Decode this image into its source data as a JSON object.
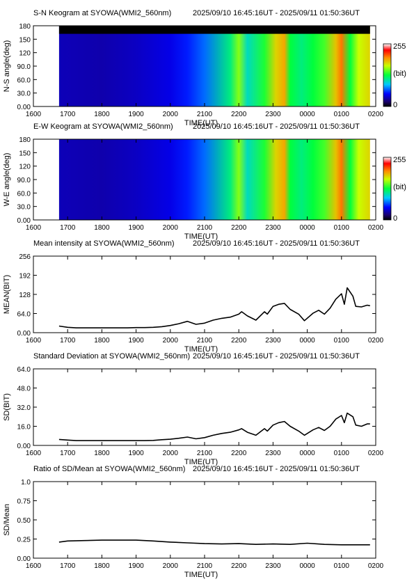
{
  "figure": {
    "time_range_text": "2025/09/10 16:45:16UT - 2025/09/11 01:50:36UT",
    "x_tick_labels": [
      "1600",
      "1700",
      "1800",
      "1900",
      "2000",
      "2100",
      "2200",
      "2300",
      "0000",
      "0100",
      "0200"
    ],
    "x_axis_label": "TIME(UT)",
    "colorbar_labels": {
      "max": "255",
      "unit": "(bit)",
      "min": "0"
    }
  },
  "chart_data": [
    {
      "type": "heatmap",
      "title": "S-N Keogram at SYOWA(WMI2_560nm)",
      "ylabel": "N-S angle(deg)",
      "xlabel": "TIME(UT)",
      "xlim": [
        "16:00",
        "02:00"
      ],
      "ylim": [
        0,
        180
      ],
      "y_ticks": [
        "0.00",
        "30.0",
        "60.0",
        "90.0",
        "120",
        "150",
        "180"
      ],
      "data_start": "16:45",
      "data_end": "01:50",
      "missing_band_deg": [
        162,
        180
      ],
      "colorbar": [
        0,
        255
      ],
      "colormap": "rainbow",
      "intensity_profile": [
        {
          "time": "16:45",
          "level": 0.14
        },
        {
          "time": "18:00",
          "level": 0.13
        },
        {
          "time": "19:00",
          "level": 0.15
        },
        {
          "time": "20:00",
          "level": 0.18
        },
        {
          "time": "20:30",
          "level": 0.22
        },
        {
          "time": "21:00",
          "level": 0.28
        },
        {
          "time": "21:45",
          "level": 0.45
        },
        {
          "time": "22:00",
          "level": 0.6
        },
        {
          "time": "22:15",
          "level": 0.4
        },
        {
          "time": "22:45",
          "level": 0.52
        },
        {
          "time": "23:05",
          "level": 0.7
        },
        {
          "time": "23:20",
          "level": 0.75
        },
        {
          "time": "23:30",
          "level": 0.5
        },
        {
          "time": "23:50",
          "level": 0.45
        },
        {
          "time": "00:10",
          "level": 0.5
        },
        {
          "time": "00:30",
          "level": 0.55
        },
        {
          "time": "00:50",
          "level": 0.72
        },
        {
          "time": "01:00",
          "level": 0.8
        },
        {
          "time": "01:15",
          "level": 0.5
        },
        {
          "time": "01:30",
          "level": 0.65
        },
        {
          "time": "01:50",
          "level": 0.7
        }
      ]
    },
    {
      "type": "heatmap",
      "title": "E-W Keogram at SYOWA(WMI2_560nm)",
      "ylabel": "W-E angle(deg)",
      "xlabel": "TIME(UT)",
      "xlim": [
        "16:00",
        "02:00"
      ],
      "ylim": [
        0,
        180
      ],
      "y_ticks": [
        "0.00",
        "30.0",
        "60.0",
        "90.0",
        "120",
        "150",
        "180"
      ],
      "data_start": "16:45",
      "data_end": "01:50",
      "missing_band_deg": null,
      "colorbar": [
        0,
        255
      ],
      "colormap": "rainbow",
      "intensity_profile": [
        {
          "time": "16:45",
          "level": 0.14
        },
        {
          "time": "18:00",
          "level": 0.13
        },
        {
          "time": "19:00",
          "level": 0.15
        },
        {
          "time": "20:00",
          "level": 0.18
        },
        {
          "time": "20:30",
          "level": 0.22
        },
        {
          "time": "21:00",
          "level": 0.28
        },
        {
          "time": "21:45",
          "level": 0.45
        },
        {
          "time": "22:00",
          "level": 0.6
        },
        {
          "time": "22:15",
          "level": 0.4
        },
        {
          "time": "22:45",
          "level": 0.52
        },
        {
          "time": "23:05",
          "level": 0.7
        },
        {
          "time": "23:20",
          "level": 0.75
        },
        {
          "time": "23:30",
          "level": 0.5
        },
        {
          "time": "23:50",
          "level": 0.45
        },
        {
          "time": "00:10",
          "level": 0.5
        },
        {
          "time": "00:30",
          "level": 0.55
        },
        {
          "time": "00:50",
          "level": 0.72
        },
        {
          "time": "01:00",
          "level": 0.8
        },
        {
          "time": "01:15",
          "level": 0.5
        },
        {
          "time": "01:30",
          "level": 0.65
        },
        {
          "time": "01:50",
          "level": 0.7
        }
      ]
    },
    {
      "type": "line",
      "title": "Mean intensity at SYOWA(WMI2_560nm)",
      "ylabel": "MEAN(BIT)",
      "xlabel": "TIME(UT)",
      "xlim": [
        "16:00",
        "02:00"
      ],
      "ylim": [
        0,
        256
      ],
      "y_ticks": [
        "0.00",
        "64.0",
        "128",
        "192",
        "256"
      ],
      "x": [
        "16:45",
        "17:00",
        "17:15",
        "17:30",
        "17:45",
        "18:00",
        "18:15",
        "18:30",
        "18:45",
        "19:00",
        "19:15",
        "19:30",
        "19:45",
        "20:00",
        "20:15",
        "20:30",
        "20:45",
        "21:00",
        "21:15",
        "21:30",
        "21:45",
        "22:00",
        "22:05",
        "22:15",
        "22:30",
        "22:45",
        "22:50",
        "23:00",
        "23:10",
        "23:20",
        "23:30",
        "23:45",
        "23:55",
        "00:10",
        "00:20",
        "00:30",
        "00:40",
        "00:50",
        "01:00",
        "01:05",
        "01:10",
        "01:20",
        "01:25",
        "01:35",
        "01:45",
        "01:50"
      ],
      "series": [
        {
          "values": [
            22,
            18,
            16,
            16,
            16,
            16,
            16,
            16,
            16,
            17,
            17,
            18,
            20,
            24,
            30,
            38,
            28,
            32,
            42,
            48,
            52,
            62,
            70,
            56,
            42,
            70,
            62,
            88,
            95,
            98,
            78,
            62,
            40,
            65,
            75,
            62,
            82,
            112,
            130,
            95,
            150,
            122,
            88,
            86,
            92,
            90
          ]
        }
      ]
    },
    {
      "type": "line",
      "title": "Standard Deviation at SYOWA(WMI2_560nm)",
      "ylabel": "SD(BIT)",
      "xlabel": "TIME(UT)",
      "xlim": [
        "16:00",
        "02:00"
      ],
      "ylim": [
        0,
        64
      ],
      "y_ticks": [
        "0.00",
        "16.0",
        "32.0",
        "48.0",
        "64.0"
      ],
      "x": [
        "16:45",
        "17:00",
        "17:15",
        "17:30",
        "17:45",
        "18:00",
        "18:15",
        "18:30",
        "18:45",
        "19:00",
        "19:15",
        "19:30",
        "19:45",
        "20:00",
        "20:15",
        "20:30",
        "20:45",
        "21:00",
        "21:15",
        "21:30",
        "21:45",
        "22:00",
        "22:05",
        "22:15",
        "22:30",
        "22:45",
        "22:50",
        "23:00",
        "23:10",
        "23:20",
        "23:30",
        "23:45",
        "23:55",
        "00:10",
        "00:20",
        "00:30",
        "00:40",
        "00:50",
        "01:00",
        "01:05",
        "01:10",
        "01:20",
        "01:25",
        "01:35",
        "01:45",
        "01:50"
      ],
      "series": [
        {
          "values": [
            5,
            4.5,
            4,
            4,
            4,
            4,
            4,
            4,
            4,
            4,
            4,
            4.2,
            4.8,
            5.2,
            6,
            7,
            5.5,
            6.5,
            8.5,
            10,
            11,
            13,
            14,
            11,
            8.5,
            14,
            12,
            17,
            19,
            20,
            16,
            12,
            8.5,
            13,
            15,
            12.5,
            16,
            22,
            25,
            19,
            27,
            24,
            17,
            16,
            18,
            18
          ]
        }
      ]
    },
    {
      "type": "line",
      "title": "Ratio of SD/Mean at SYOWA(WMI2_560nm)",
      "ylabel": "SD/Mean",
      "xlabel": "TIME(UT)",
      "xlim": [
        "16:00",
        "02:00"
      ],
      "ylim": [
        0,
        1
      ],
      "y_ticks": [
        "0.00",
        "0.25",
        "0.50",
        "0.75",
        "1.0"
      ],
      "x": [
        "16:45",
        "17:00",
        "17:30",
        "18:00",
        "18:30",
        "19:00",
        "19:30",
        "20:00",
        "20:30",
        "21:00",
        "21:30",
        "22:00",
        "22:30",
        "23:00",
        "23:30",
        "00:00",
        "00:30",
        "01:00",
        "01:30",
        "01:50"
      ],
      "series": [
        {
          "values": [
            0.21,
            0.225,
            0.23,
            0.235,
            0.235,
            0.235,
            0.225,
            0.21,
            0.2,
            0.19,
            0.185,
            0.19,
            0.18,
            0.185,
            0.18,
            0.195,
            0.18,
            0.175,
            0.175,
            0.175
          ]
        }
      ]
    }
  ]
}
